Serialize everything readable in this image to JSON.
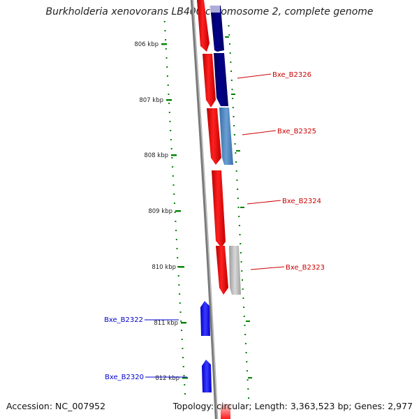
{
  "title": "Burkholderia xenovorans LB400 chromosome 2, complete genome",
  "accession": "Accession: NC_007952",
  "topology": "Topology: circular; Length: 3,363,523 bp; Genes: 2,977",
  "colors": {
    "backbone": "#7a7a7a",
    "forward_strand": "#ff0000",
    "reverse_strand": "#0000ff",
    "navy": "#00007a",
    "steel": "#4f86c0",
    "grey": "#b0b0b0",
    "ticks": "#008000",
    "label_red": "#cc0000",
    "label_blue": "#0000cc"
  },
  "ticks": [
    {
      "label": "806 kbp"
    },
    {
      "label": "807 kbp"
    },
    {
      "label": "808 kbp"
    },
    {
      "label": "809 kbp"
    },
    {
      "label": "810 kbp"
    },
    {
      "label": "811 kbp"
    },
    {
      "label": "812 kbp"
    }
  ],
  "gene_labels": [
    {
      "text": "Bxe_B2326",
      "strand": "forward"
    },
    {
      "text": "Bxe_B2325",
      "strand": "forward"
    },
    {
      "text": "Bxe_B2324",
      "strand": "forward"
    },
    {
      "text": "Bxe_B2323",
      "strand": "forward"
    },
    {
      "text": "Bxe_B2322",
      "strand": "reverse"
    },
    {
      "text": "Bxe_B2320",
      "strand": "reverse"
    }
  ]
}
